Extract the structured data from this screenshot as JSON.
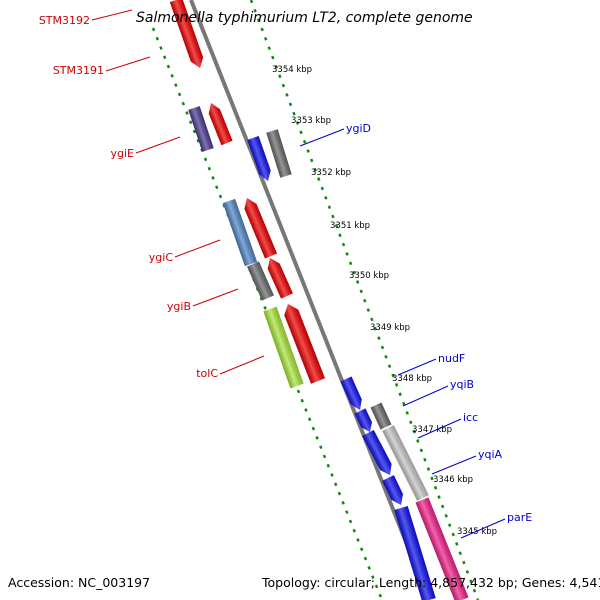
{
  "title": "Salmonella typhimurium LT2, complete genome",
  "footer": {
    "accession": "Accession: NC_003197",
    "topology": "Topology: circular; Length: 4,857,432 bp; Genes: 4,541"
  },
  "ticks": [
    {
      "id": "t3354",
      "label": "3354 kbp"
    },
    {
      "id": "t3353",
      "label": "3353 kbp"
    },
    {
      "id": "t3352",
      "label": "3352 kbp"
    },
    {
      "id": "t3351",
      "label": "3351 kbp"
    },
    {
      "id": "t3350",
      "label": "3350 kbp"
    },
    {
      "id": "t3349",
      "label": "3349 kbp"
    },
    {
      "id": "t3348",
      "label": "3348 kbp"
    },
    {
      "id": "t3347",
      "label": "3347 kbp"
    },
    {
      "id": "t3346",
      "label": "3346 kbp"
    },
    {
      "id": "t3345",
      "label": "3345 kbp"
    }
  ],
  "reverse_genes": [
    {
      "id": "STM3192",
      "label": "STM3192"
    },
    {
      "id": "STM3191",
      "label": "STM3191"
    },
    {
      "id": "ygiE",
      "label": "ygiE"
    },
    {
      "id": "ygiC",
      "label": "ygiC"
    },
    {
      "id": "ygiB",
      "label": "ygiB"
    },
    {
      "id": "tolC",
      "label": "tolC"
    }
  ],
  "forward_genes": [
    {
      "id": "ygiD",
      "label": "ygiD"
    },
    {
      "id": "nudF",
      "label": "nudF"
    },
    {
      "id": "yqiB",
      "label": "yqiB"
    },
    {
      "id": "icc",
      "label": "icc"
    },
    {
      "id": "yqiA",
      "label": "yqiA"
    },
    {
      "id": "parE",
      "label": "parE"
    }
  ],
  "colors": {
    "reverse_label": "#cc0000",
    "forward_label": "#0000cc",
    "tick_dash": "#118811",
    "genome_line": "#777777",
    "red": "#ee0000",
    "blue": "#1010ee",
    "gray": "#6a6a6a",
    "steelblue": "#4f86c4",
    "indigo": "#4b3a8e",
    "lime": "#a8e43a",
    "silver": "#c4c4c4",
    "pink": "#ee2288"
  }
}
